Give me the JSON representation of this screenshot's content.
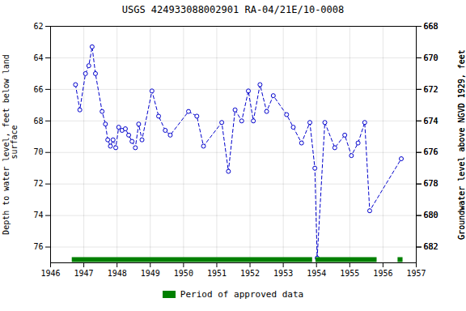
{
  "chart_data": {
    "type": "line",
    "title": "USGS 424933088002901 RA-04/21E/10-0008",
    "ylabel": "Depth to water level, feet below land\n surface",
    "y2label": "Groundwater level above NGVD 1929, feet",
    "x": [
      1946.75,
      1946.88,
      1947.05,
      1947.15,
      1947.25,
      1947.35,
      1947.55,
      1947.65,
      1947.72,
      1947.8,
      1947.88,
      1947.96,
      1948.05,
      1948.15,
      1948.25,
      1948.35,
      1948.45,
      1948.55,
      1948.65,
      1948.75,
      1949.05,
      1949.25,
      1949.45,
      1949.6,
      1950.15,
      1950.4,
      1950.6,
      1951.15,
      1951.35,
      1951.55,
      1951.75,
      1951.95,
      1952.1,
      1952.3,
      1952.5,
      1952.7,
      1953.1,
      1953.3,
      1953.55,
      1953.8,
      1953.95,
      1954.02,
      1954.25,
      1954.55,
      1954.85,
      1955.05,
      1955.25,
      1955.45,
      1955.6,
      1956.55
    ],
    "values": [
      65.7,
      67.3,
      65.0,
      64.5,
      63.3,
      65.0,
      67.4,
      68.2,
      69.2,
      69.6,
      69.2,
      69.7,
      68.4,
      68.6,
      68.5,
      68.9,
      69.3,
      69.7,
      68.2,
      69.2,
      66.1,
      67.7,
      68.6,
      68.9,
      67.4,
      67.7,
      69.6,
      68.1,
      71.2,
      67.3,
      68.0,
      66.1,
      68.0,
      65.7,
      67.4,
      66.4,
      67.6,
      68.4,
      69.4,
      68.1,
      71.0,
      76.7,
      68.1,
      69.7,
      68.9,
      70.2,
      69.4,
      68.1,
      73.7,
      70.4
    ],
    "color": "#0000CC",
    "marker": "circle",
    "line_style": "dashed",
    "xlim": [
      1946,
      1957
    ],
    "xticks": [
      1946,
      1947,
      1948,
      1949,
      1950,
      1951,
      1952,
      1953,
      1954,
      1955,
      1956,
      1957
    ],
    "ylim": [
      77,
      62
    ],
    "yticks": [
      62,
      64,
      66,
      68,
      70,
      72,
      74,
      76
    ],
    "y2lim": [
      683,
      668
    ],
    "y2ticks": [
      682,
      680,
      678,
      676,
      674,
      672,
      670,
      668
    ],
    "grid": true,
    "legend": "bottom",
    "approved_periods": {
      "name": "Period of approved data",
      "color": "#008000",
      "ranges": [
        [
          1946.65,
          1953.88
        ],
        [
          1953.98,
          1955.82
        ],
        [
          1956.45,
          1956.6
        ]
      ]
    }
  }
}
